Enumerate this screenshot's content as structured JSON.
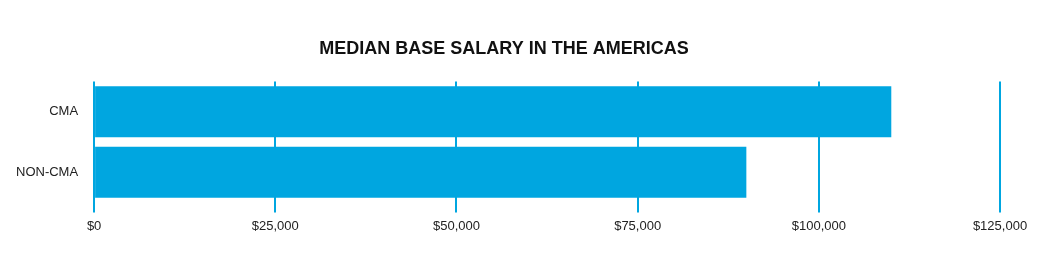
{
  "chart_data": {
    "type": "bar",
    "orientation": "horizontal",
    "title": "MEDIAN BASE SALARY IN THE AMERICAS",
    "categories": [
      "CMA",
      "NON-CMA"
    ],
    "values": [
      110000,
      90000
    ],
    "color": "#00a6e0",
    "xlim": [
      0,
      125000
    ],
    "xticks": [
      {
        "value": 0,
        "label": "$0"
      },
      {
        "value": 25000,
        "label": "$25,000"
      },
      {
        "value": 50000,
        "label": "$50,000"
      },
      {
        "value": 75000,
        "label": "$75,000"
      },
      {
        "value": 100000,
        "label": "$100,000"
      },
      {
        "value": 125000,
        "label": "$125,000"
      }
    ],
    "grid": true
  }
}
